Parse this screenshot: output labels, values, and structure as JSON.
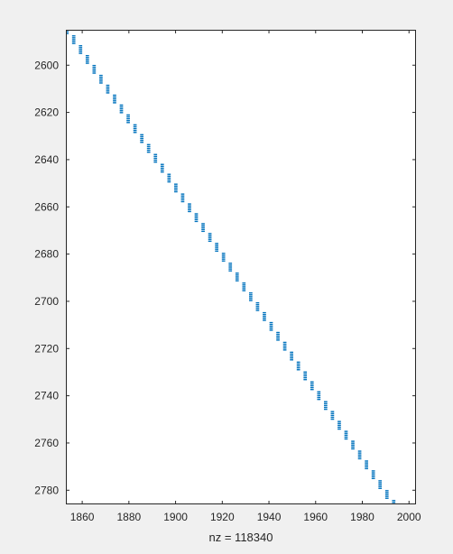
{
  "chart_data": {
    "type": "scatter",
    "title": "",
    "xlabel": "nz = 118340",
    "ylabel": "",
    "xlim": [
      1853,
      2003
    ],
    "ylim": [
      2585,
      2786
    ],
    "y_reversed": true,
    "grid": false,
    "x_ticks": [
      1860,
      1880,
      1900,
      1920,
      1940,
      1960,
      1980,
      2000
    ],
    "y_ticks": [
      2600,
      2620,
      2640,
      2660,
      2680,
      2700,
      2720,
      2740,
      2760,
      2780
    ],
    "x_tick_labels": [
      "1860",
      "1880",
      "1900",
      "1920",
      "1940",
      "1960",
      "1980",
      "2000"
    ],
    "y_tick_labels": [
      "2600",
      "2620",
      "2640",
      "2660",
      "2680",
      "2700",
      "2720",
      "2740",
      "2760",
      "2780"
    ],
    "series": [
      {
        "marker": "dot",
        "color": "#0072BD",
        "description_blocks": "diagonal band of 3x3-ish dotted blocks from column 1853 row 2585 down to column 1993 row 2786",
        "start": [
          1853,
          2585
        ],
        "end": [
          1993,
          2786
        ],
        "block_step_x": 2.9
      }
    ]
  },
  "colors": {
    "figure_bg": "#f0f0f0",
    "axes_bg": "#ffffff",
    "axes_line": "#262626",
    "marker": "#0072BD"
  }
}
